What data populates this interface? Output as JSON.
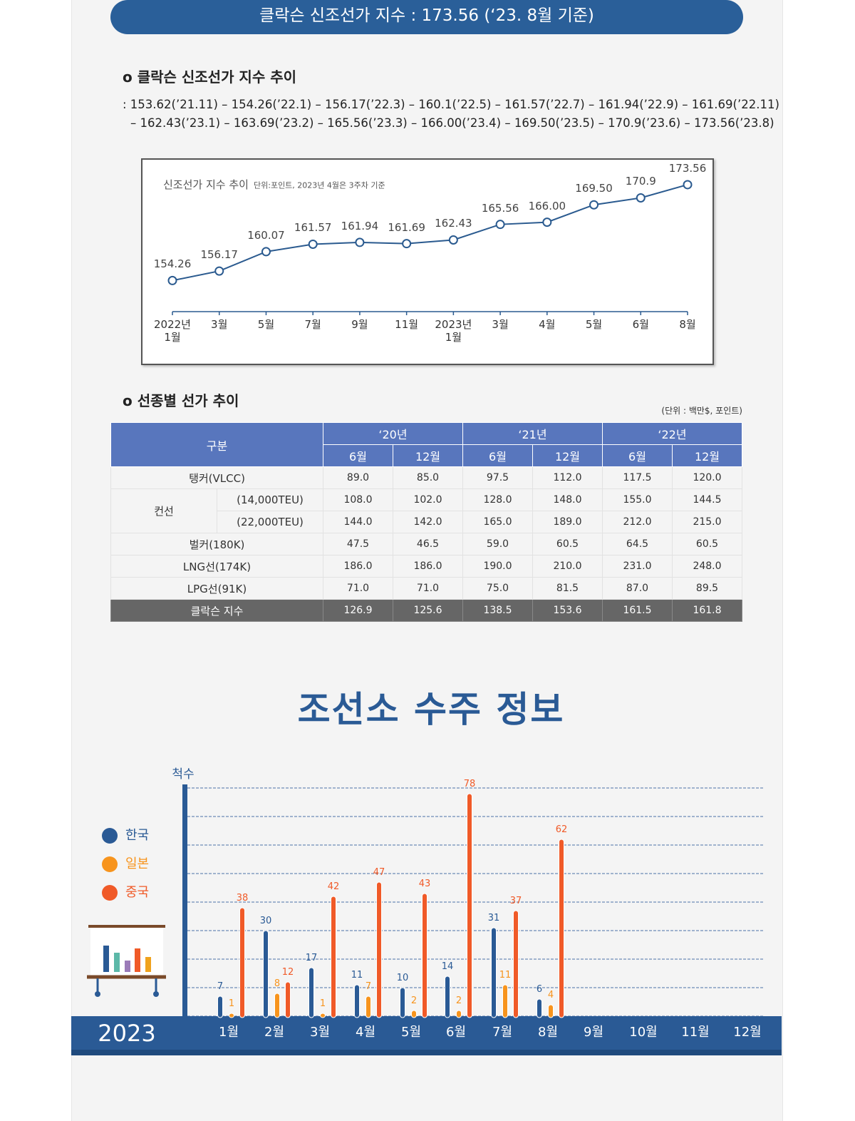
{
  "header": {
    "title": "클락슨 신조선가 지수 : 173.56 (‘23. 8월 기준)"
  },
  "index_trend": {
    "heading": "o 클락슨 신조선가 지수 추이",
    "lines": [
      ": 153.62(’21.11) – 154.26(’22.1) – 156.17(’22.3) – 160.1(’22.5)  – 161.57(’22.7) – 161.94(’22.9) – 161.69(’22.11)",
      "– 162.43(’23.1) – 163.69(’23.2) – 165.56(’23.3) – 166.00(’23.4) – 169.50(’23.5) – 170.9(’23.6) – 173.56(’23.8)"
    ]
  },
  "chart_data": [
    {
      "type": "line",
      "title": "신조선가 지수 추이",
      "subtitle": "단위:포인트, 2023년 4월은 3주차 기준",
      "categories": [
        "2022년 1월",
        "3월",
        "5월",
        "7월",
        "9월",
        "11월",
        "2023년 1월",
        "3월",
        "4월",
        "5월",
        "6월",
        "8월"
      ],
      "values": [
        154.26,
        156.17,
        160.07,
        161.57,
        161.94,
        161.69,
        162.43,
        165.56,
        166.0,
        169.5,
        170.9,
        173.56
      ],
      "value_labels": [
        "154.26",
        "156.17",
        "160.07",
        "161.57",
        "161.94",
        "161.69",
        "162.43",
        "165.56",
        "166.00",
        "169.50",
        "170.9",
        "173.56"
      ],
      "color": "#2a5a8f",
      "ylim": [
        148,
        177
      ]
    },
    {
      "type": "bar",
      "title": "조선소 수주 정보",
      "y_label": "척수",
      "year": "2023",
      "categories": [
        "1월",
        "2월",
        "3월",
        "4월",
        "5월",
        "6월",
        "7월",
        "8월",
        "9월",
        "10월",
        "11월",
        "12월"
      ],
      "series": [
        {
          "name": "한국",
          "color": "#2a5a95",
          "values": [
            7,
            30,
            17,
            11,
            10,
            14,
            31,
            6,
            null,
            null,
            null,
            null
          ]
        },
        {
          "name": "일본",
          "color": "#f7941d",
          "values": [
            1,
            8,
            1,
            7,
            2,
            2,
            11,
            4,
            null,
            null,
            null,
            null
          ]
        },
        {
          "name": "중국",
          "color": "#f05a28",
          "values": [
            38,
            12,
            42,
            47,
            43,
            78,
            37,
            62,
            null,
            null,
            null,
            null
          ]
        }
      ],
      "ylim": [
        0,
        80
      ],
      "yticks": [
        0,
        10,
        20,
        30,
        40,
        50,
        60,
        70,
        80
      ],
      "grid": true
    }
  ],
  "table_section": {
    "heading": "o 선종별 선가 추이",
    "unit": "(단위 : 백만$, 포인트)"
  },
  "table": {
    "header": {
      "label": "구분",
      "years": [
        "‘20년",
        "‘21년",
        "‘22년"
      ],
      "months": [
        "6월",
        "12월",
        "6월",
        "12월",
        "6월",
        "12월"
      ]
    },
    "rows": [
      {
        "label": "탱커(VLCC)",
        "values": [
          "89.0",
          "85.0",
          "97.5",
          "112.0",
          "117.5",
          "120.0"
        ]
      },
      {
        "label": "컨선",
        "sub_rows": [
          {
            "label": "(14,000TEU)",
            "values": [
              "108.0",
              "102.0",
              "128.0",
              "148.0",
              "155.0",
              "144.5"
            ]
          },
          {
            "label": "(22,000TEU)",
            "values": [
              "144.0",
              "142.0",
              "165.0",
              "189.0",
              "212.0",
              "215.0"
            ]
          }
        ]
      },
      {
        "label": "벌커(180K)",
        "values": [
          "47.5",
          "46.5",
          "59.0",
          "60.5",
          "64.5",
          "60.5"
        ]
      },
      {
        "label": "LNG선(174K)",
        "values": [
          "186.0",
          "186.0",
          "190.0",
          "210.0",
          "231.0",
          "248.0"
        ]
      },
      {
        "label": "LPG선(91K)",
        "values": [
          "71.0",
          "71.0",
          "75.0",
          "81.5",
          "87.0",
          "89.5"
        ]
      }
    ],
    "total": {
      "label": "클락슨 지수",
      "values": [
        "126.9",
        "125.6",
        "138.5",
        "153.6",
        "161.5",
        "161.8"
      ]
    }
  }
}
